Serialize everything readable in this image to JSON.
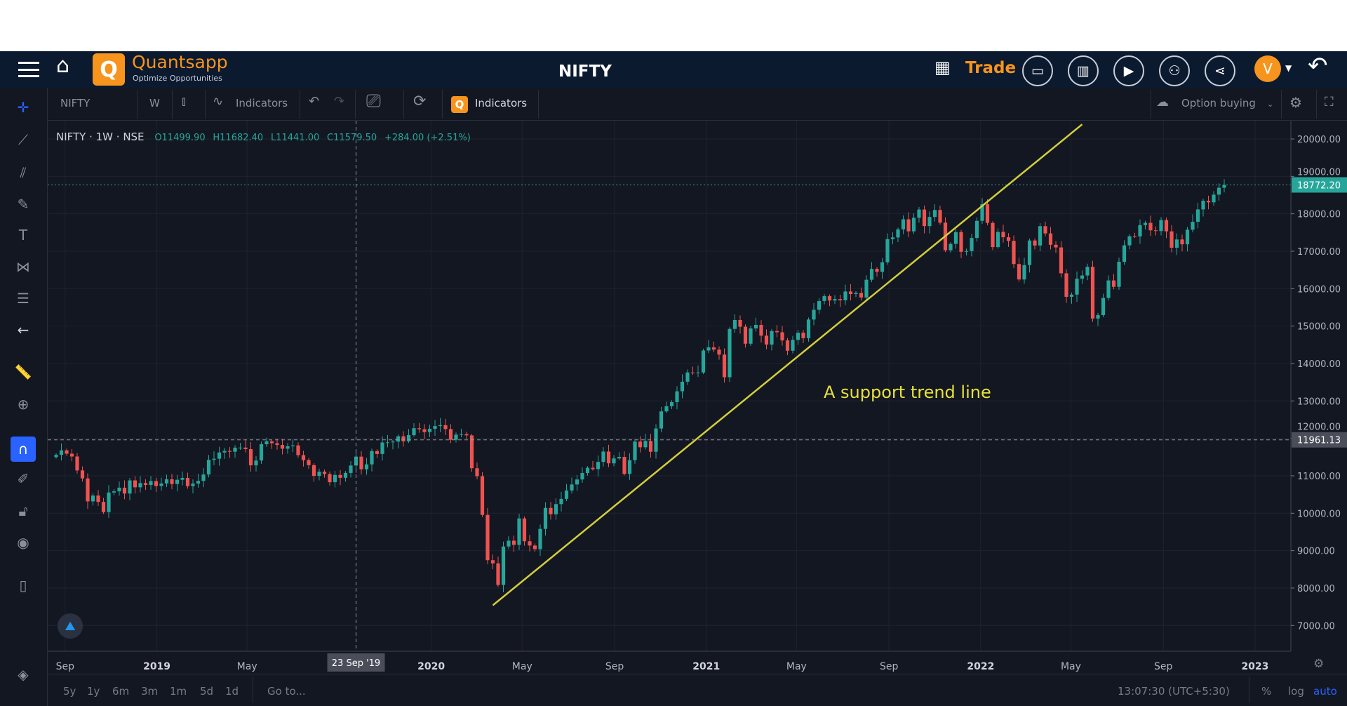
{
  "header": {
    "brand": "Quantsapp",
    "tagline": "Optimize Opportunities",
    "symbol": "NIFTY",
    "trade_label": "Trade",
    "avatar_letter": "V",
    "icons": [
      "menu-icon",
      "home-icon",
      "grid-icon",
      "window-icon",
      "layout-icon",
      "video-icon",
      "book-icon",
      "share-icon",
      "back-arrow-icon"
    ]
  },
  "toolbar": {
    "symbol": "NIFTY",
    "interval": "W",
    "indicators_label": "Indicators",
    "q_indicators_label": "Indicators",
    "option_dropdown": "Option buying"
  },
  "legend": {
    "title": "NIFTY · 1W · NSE",
    "open": "O11499.90",
    "high": "H11682.40",
    "low": "L11441.00",
    "close": "C11579.50",
    "change": "+284.00 (+2.51%)"
  },
  "bottom": {
    "ranges": [
      "5y",
      "1y",
      "6m",
      "3m",
      "1m",
      "5d",
      "1d"
    ],
    "goto": "Go to...",
    "time": "13:07:30 (UTC+5:30)",
    "pct": "%",
    "log": "log",
    "auto": "auto"
  },
  "colors": {
    "up": "#26a69a",
    "down": "#ef5350",
    "trendline": "#d4cf3a",
    "accent": "#f7941d",
    "background": "#131722",
    "header": "#0b1a2f"
  },
  "chart_data": {
    "type": "candlestick",
    "interval": "weekly",
    "first_week": "2018-08-20",
    "ylim": [
      6800,
      20500
    ],
    "y_ticks": [
      20000,
      19000,
      18000,
      17000,
      16000,
      15000,
      14000,
      13000,
      12000,
      11000,
      10000,
      9000,
      8000,
      7000
    ],
    "y_tick_labels": [
      "20000.00",
      "19000.00",
      "18000.00",
      "17000.00",
      "16000.00",
      "15000.00",
      "14000.00",
      "13000.00",
      "12000.00",
      "11000.00",
      "10000.00",
      "9000.00",
      "8000.00",
      "7000.00"
    ],
    "x_ticks": [
      {
        "date": "2018-09-01",
        "label": "Sep"
      },
      {
        "date": "2019-01-01",
        "label": "2019"
      },
      {
        "date": "2019-05-01",
        "label": "May"
      },
      {
        "date": "2020-01-01",
        "label": "2020"
      },
      {
        "date": "2020-05-01",
        "label": "May"
      },
      {
        "date": "2020-09-01",
        "label": "Sep"
      },
      {
        "date": "2021-01-01",
        "label": "2021"
      },
      {
        "date": "2021-05-01",
        "label": "May"
      },
      {
        "date": "2021-09-01",
        "label": "Sep"
      },
      {
        "date": "2022-01-01",
        "label": "2022"
      },
      {
        "date": "2022-05-01",
        "label": "May"
      },
      {
        "date": "2022-09-01",
        "label": "Sep"
      },
      {
        "date": "2023-01-01",
        "label": "2023"
      }
    ],
    "weekly_close": [
      11560,
      11680,
      11590,
      11515,
      11143,
      10930,
      10316,
      10472,
      10303,
      10030,
      10553,
      10585,
      10682,
      10526,
      10877,
      10693,
      10805,
      10754,
      10859,
      10727,
      10795,
      10906,
      10780,
      10893,
      10944,
      10724,
      10791,
      10863,
      11035,
      11427,
      11456,
      11623,
      11665,
      11643,
      11752,
      11754,
      11712,
      11279,
      11407,
      11844,
      11922,
      11870,
      11823,
      11724,
      11788,
      11811,
      11552,
      11419,
      11284,
      10997,
      11109,
      11047,
      10829,
      11023,
      10946,
      11076,
      11274,
      11512,
      11174,
      11305,
      11661,
      11583,
      11890,
      11895,
      11914,
      12056,
      11922,
      12086,
      12271,
      12245,
      12168,
      12256,
      12329,
      12352,
      12248,
      11962,
      12098,
      12113,
      12080,
      11202,
      10989,
      9955,
      8745,
      8660,
      8083,
      9111,
      9266,
      9154,
      9860,
      9251,
      9136,
      9039,
      9580,
      10142,
      9972,
      10244,
      10383,
      10607,
      10768,
      10902,
      11073,
      11214,
      11178,
      11372,
      11647,
      11333,
      11464,
      11505,
      11050,
      11417,
      11914,
      11762,
      11930,
      11642,
      12263,
      12720,
      12859,
      12968,
      13258,
      13514,
      13761,
      13749,
      13760,
      14347,
      14433,
      14371,
      14239,
      13634,
      14924,
      15163,
      14982,
      14529,
      14938,
      15031,
      14744,
      14507,
      14867,
      14835,
      14617,
      14341,
      14631,
      14823,
      14677,
      15175,
      15435,
      15670,
      15799,
      15683,
      15722,
      15690,
      15924,
      15856,
      15885,
      15763,
      16238,
      16529,
      16450,
      16705,
      17324,
      17369,
      17585,
      17853,
      17532,
      17895,
      18114,
      17671,
      17916,
      18102,
      17765,
      17026,
      17197,
      17512,
      16985,
      17004,
      17354,
      17812,
      18255,
      17757,
      17110,
      17516,
      17374,
      17276,
      16658,
      16245,
      16630,
      17287,
      17153,
      17670,
      17476,
      17172,
      17102,
      16411,
      15782,
      15842,
      16266,
      16352,
      16584,
      15201,
      15293,
      15752,
      16220,
      16049,
      16719,
      17158,
      17400,
      17397,
      17698,
      17758,
      17558,
      17539,
      17833,
      17531,
      17094,
      17314,
      17185,
      17576,
      17786,
      18117,
      18349,
      18307,
      18512,
      18697,
      18772
    ],
    "last_price": {
      "value": 18772.2,
      "label": "18772.20"
    },
    "crosshair": {
      "date": "23 Sep '19",
      "price_label": "11961.13",
      "price": 11961.13
    },
    "trendline": {
      "start": {
        "date": "2020-03-23",
        "price": 7540
      },
      "end": {
        "date": "2022-05-16",
        "price": 20390
      }
    },
    "annotation": "A support trend line"
  }
}
